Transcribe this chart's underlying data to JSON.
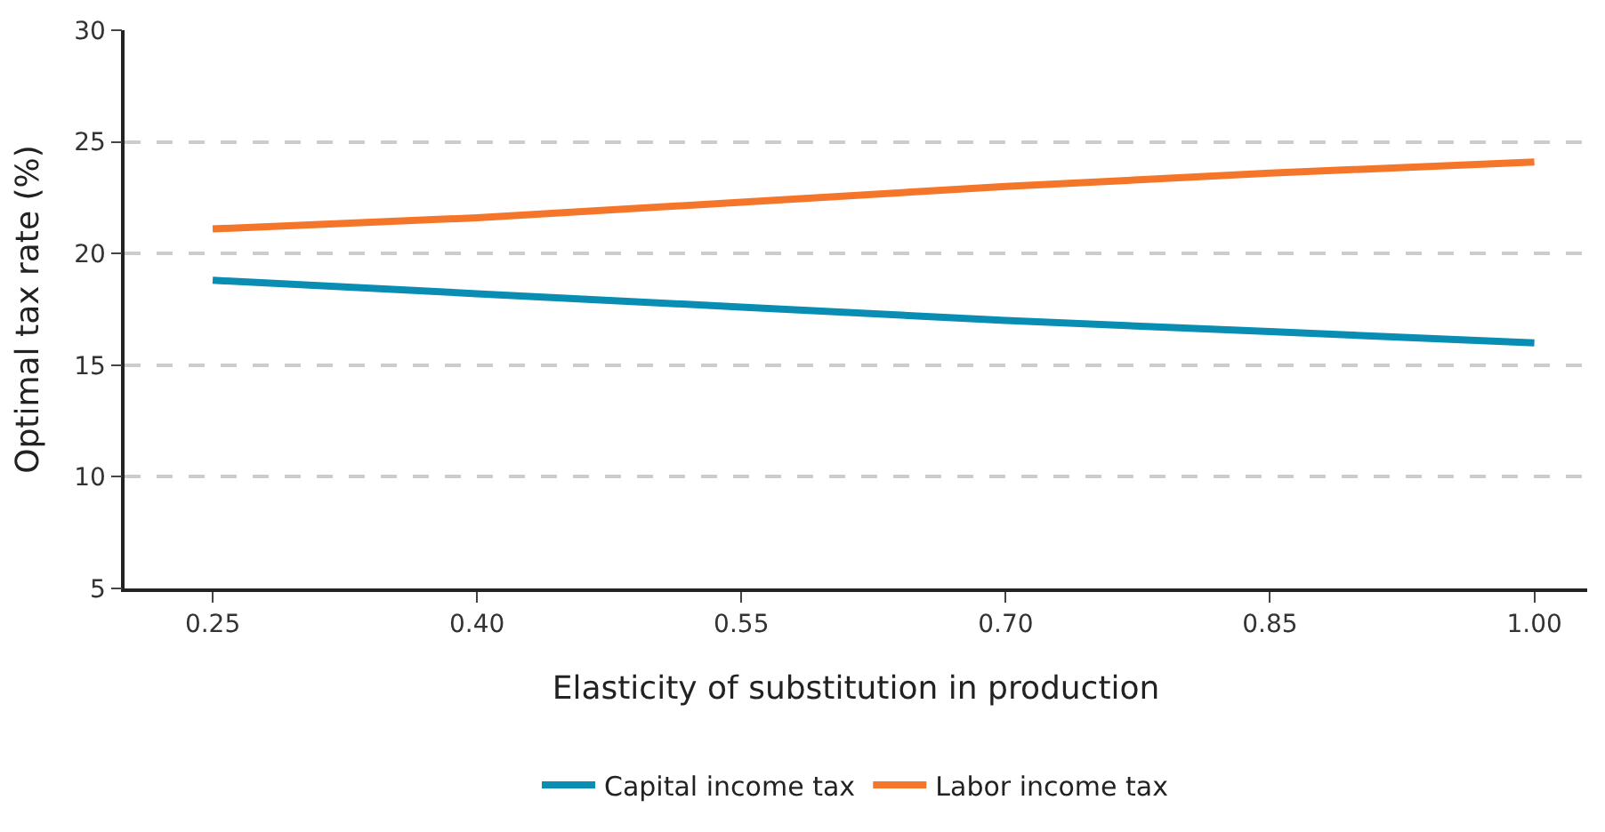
{
  "chart_data": {
    "type": "line",
    "xlabel": "Elasticity of substitution in production",
    "ylabel": "Optimal tax rate (%)",
    "x": [
      0.25,
      0.4,
      0.55,
      0.7,
      0.85,
      1.0
    ],
    "series": [
      {
        "name": "Capital income tax",
        "color": "#0a8db3",
        "values": [
          18.8,
          18.2,
          17.6,
          17.0,
          16.5,
          16.0
        ]
      },
      {
        "name": "Labor income tax",
        "color": "#f4762a",
        "values": [
          21.1,
          21.6,
          22.3,
          23.0,
          23.6,
          24.1
        ]
      }
    ],
    "xlim": [
      0.2,
      1.03
    ],
    "xticks": [
      {
        "value": 0.25,
        "label": "0.25"
      },
      {
        "value": 0.4,
        "label": "0.40"
      },
      {
        "value": 0.55,
        "label": "0.55"
      },
      {
        "value": 0.7,
        "label": "0.70"
      },
      {
        "value": 0.85,
        "label": "0.85"
      },
      {
        "value": 1.0,
        "label": "1.00"
      }
    ],
    "ylim": [
      5,
      30
    ],
    "yticks": [
      5,
      10,
      15,
      20,
      25,
      30
    ],
    "grid": "y",
    "legend": "bottom",
    "marker": "none",
    "line_style": "solid"
  }
}
